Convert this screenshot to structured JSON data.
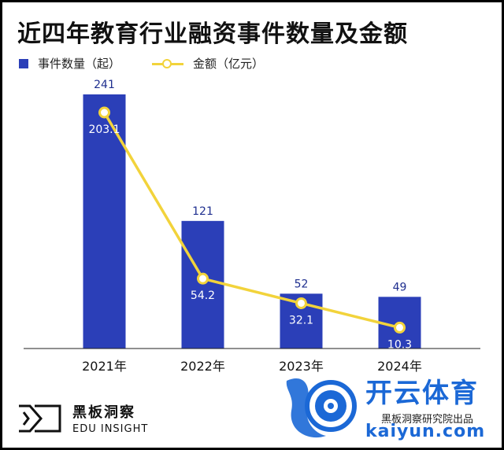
{
  "chart_data": {
    "type": "bar",
    "title": "近四年教育行业融资事件数量及金额",
    "categories": [
      "2021年",
      "2022年",
      "2023年",
      "2024年"
    ],
    "series": [
      {
        "name": "事件数量（起）",
        "type": "bar",
        "values": [
          241,
          121,
          52,
          49
        ],
        "color": "#2b3fb8"
      },
      {
        "name": "金额（亿元）",
        "type": "line",
        "values": [
          203.1,
          54.2,
          32.1,
          10.3
        ],
        "color": "#f2d33b"
      }
    ],
    "legend_position": "top-left",
    "grid": false
  },
  "footer": {
    "brand_cn": "黑板洞察",
    "brand_en": "EDU INSIGHT"
  },
  "watermark": {
    "cn": "开云体育",
    "en": "kaiyun.com",
    "source": "黑板洞察研究院出品",
    "color": "#1b68d6"
  }
}
